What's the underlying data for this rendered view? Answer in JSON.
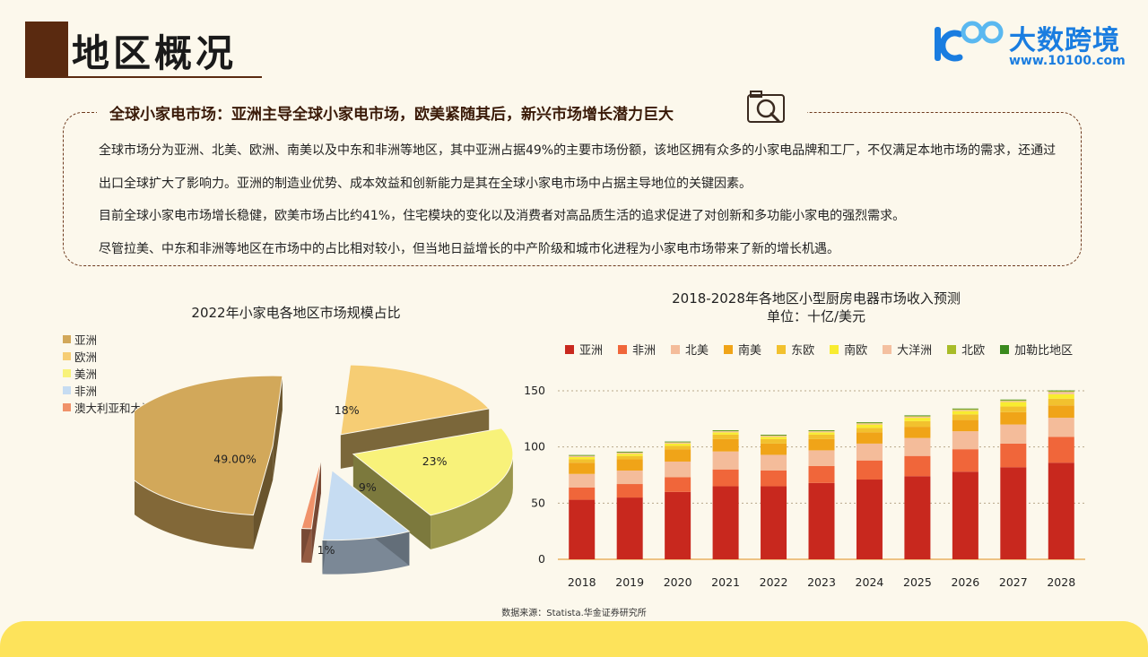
{
  "header": {
    "title": "地区概况"
  },
  "brand": {
    "name": "大数跨境",
    "url": "www.10100.com",
    "colors": {
      "primary": "#1a7de0"
    }
  },
  "summary": {
    "headline": "全球小家电市场：亚洲主导全球小家电市场，欧美紧随其后，新兴市场增长潜力巨大",
    "icon": "magnifier-photo-icon",
    "paragraphs": [
      "全球市场分为亚洲、北美、欧洲、南美以及中东和非洲等地区，其中亚洲占据49%的主要市场份额，该地区拥有众多的小家电品牌和工厂，不仅满足本地市场的需求，还通过出口全球扩大了影响力。亚洲的制造业优势、成本效益和创新能力是其在全球小家电市场中占据主导地位的关键因素。",
      "目前全球小家电市场增长稳健，欧美市场占比约41%，住宅模块的变化以及消费者对高品质生活的追求促进了对创新和多功能小家电的强烈需求。",
      "尽管拉美、中东和非洲等地区在市场中的占比相对较小，但当地日益增长的中产阶级和城市化进程为小家电市场带来了新的增长机遇。"
    ]
  },
  "chart_data": [
    {
      "type": "pie",
      "title": "2022年小家电各地区市场规模占比",
      "legend_position": "top-left",
      "slices": [
        {
          "name": "亚洲",
          "value": 49,
          "label": "49.00%",
          "color": "#d2a85a"
        },
        {
          "name": "欧洲",
          "value": 18,
          "label": "18%",
          "color": "#f6cd74"
        },
        {
          "name": "美洲",
          "value": 23,
          "label": "23%",
          "color": "#f8f27a"
        },
        {
          "name": "非洲",
          "value": 9,
          "label": "9%",
          "color": "#c6dcf2"
        },
        {
          "name": "澳大利亚和大洋洲",
          "value": 1,
          "label": "1%",
          "color": "#f0926a"
        }
      ]
    },
    {
      "type": "bar",
      "stacked": true,
      "title": "2018-2028年各地区小型厨房电器市场收入预测",
      "subtitle": "单位：十亿/美元",
      "legend_position": "top",
      "grid": true,
      "categories": [
        "2018",
        "2019",
        "2020",
        "2021",
        "2022",
        "2023",
        "2024",
        "2025",
        "2026",
        "2027",
        "2028"
      ],
      "ylim": [
        0,
        150
      ],
      "yticks": [
        0,
        50,
        100,
        150
      ],
      "series": [
        {
          "name": "亚洲",
          "color": "#c8281e",
          "values": [
            53,
            55,
            60,
            65,
            65,
            68,
            71,
            74,
            78,
            82,
            86
          ]
        },
        {
          "name": "非洲",
          "color": "#f0663a",
          "values": [
            11,
            12,
            13,
            15,
            14,
            15,
            17,
            18,
            20,
            21,
            23
          ]
        },
        {
          "name": "北美",
          "color": "#f4bc9a",
          "values": [
            12,
            12,
            14,
            16,
            14,
            14,
            15,
            16,
            16,
            17,
            17
          ]
        },
        {
          "name": "南美",
          "color": "#f0a418",
          "values": [
            10,
            10,
            11,
            11,
            10,
            10,
            10,
            10,
            10,
            11,
            11
          ]
        },
        {
          "name": "东欧",
          "color": "#f2c12e",
          "values": [
            3,
            3,
            3,
            4,
            4,
            4,
            4,
            5,
            5,
            5,
            6
          ]
        },
        {
          "name": "南欧",
          "color": "#f8ec30",
          "values": [
            2,
            2,
            2,
            2,
            2,
            2,
            3,
            3,
            3,
            4,
            4
          ]
        },
        {
          "name": "大洋洲",
          "color": "#f4c0a0",
          "values": [
            1,
            1,
            1,
            1,
            1,
            1,
            1,
            1,
            1,
            1,
            2
          ]
        },
        {
          "name": "北欧",
          "color": "#a8bc28",
          "values": [
            0.5,
            0.5,
            0.5,
            0.6,
            0.6,
            0.6,
            0.7,
            0.7,
            0.8,
            0.8,
            0.9
          ]
        },
        {
          "name": "加勒比地区",
          "color": "#3a8a1e",
          "values": [
            0.3,
            0.3,
            0.3,
            0.3,
            0.3,
            0.3,
            0.3,
            0.4,
            0.4,
            0.4,
            0.4
          ]
        }
      ]
    }
  ],
  "footer": {
    "source": "数据来源：Statista.华金证券研究所"
  }
}
